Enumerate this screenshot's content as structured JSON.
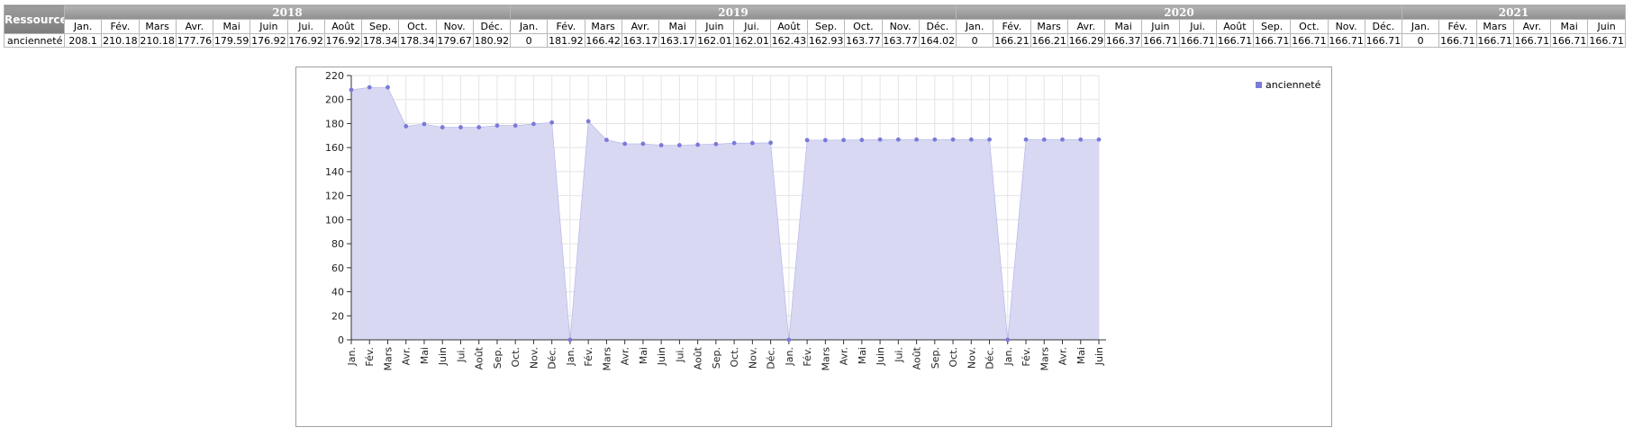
{
  "table": {
    "resource_header": "Ressource",
    "years": [
      {
        "label": "2018",
        "span": 12
      },
      {
        "label": "2019",
        "span": 12
      },
      {
        "label": "2020",
        "span": 12
      },
      {
        "label": "2021",
        "span": 6
      }
    ],
    "months": [
      "Jan.",
      "Fév.",
      "Mars",
      "Avr.",
      "Mai",
      "Juin",
      "Jui.",
      "Août",
      "Sep.",
      "Oct.",
      "Nov.",
      "Déc.",
      "Jan.",
      "Fév.",
      "Mars",
      "Avr.",
      "Mai",
      "Juin",
      "Jui.",
      "Août",
      "Sep.",
      "Oct.",
      "Nov.",
      "Déc.",
      "Jan.",
      "Fév.",
      "Mars",
      "Avr.",
      "Mai",
      "Juin",
      "Jui.",
      "Août",
      "Sep.",
      "Oct.",
      "Nov.",
      "Déc.",
      "Jan.",
      "Fév.",
      "Mars",
      "Avr.",
      "Mai",
      "Juin"
    ],
    "rows": [
      {
        "label": "ancienneté",
        "values": [
          "208.1",
          "210.18",
          "210.18",
          "177.76",
          "179.59",
          "176.92",
          "176.92",
          "176.92",
          "178.34",
          "178.34",
          "179.67",
          "180.92",
          "0",
          "181.92",
          "166.42",
          "163.17",
          "163.17",
          "162.01",
          "162.01",
          "162.43",
          "162.93",
          "163.77",
          "163.77",
          "164.02",
          "0",
          "166.21",
          "166.21",
          "166.29",
          "166.37",
          "166.71",
          "166.71",
          "166.71",
          "166.71",
          "166.71",
          "166.71",
          "166.71",
          "0",
          "166.71",
          "166.71",
          "166.71",
          "166.71",
          "166.71"
        ]
      }
    ]
  },
  "colors": {
    "series_line": "#7a7ad8",
    "series_fill": "#d6d6f2",
    "grid": "#e4e4e4",
    "axis": "#333333"
  },
  "chart_data": {
    "type": "area",
    "categories": [
      "Jan.",
      "Fév.",
      "Mars",
      "Avr.",
      "Mai",
      "Juin",
      "Jui.",
      "Août",
      "Sep.",
      "Oct.",
      "Nov.",
      "Déc.",
      "Jan.",
      "Fév.",
      "Mars",
      "Avr.",
      "Mai",
      "Juin",
      "Jui.",
      "Août",
      "Sep.",
      "Oct.",
      "Nov.",
      "Déc.",
      "Jan.",
      "Fév.",
      "Mars",
      "Avr.",
      "Mai",
      "Juin",
      "Jui.",
      "Août",
      "Sep.",
      "Oct.",
      "Nov.",
      "Déc.",
      "Jan.",
      "Fév.",
      "Mars",
      "Avr.",
      "Mai",
      "Juin"
    ],
    "series": [
      {
        "name": "ancienneté",
        "values": [
          208.1,
          210.18,
          210.18,
          177.76,
          179.59,
          176.92,
          176.92,
          176.92,
          178.34,
          178.34,
          179.67,
          180.92,
          0,
          181.92,
          166.42,
          163.17,
          163.17,
          162.01,
          162.01,
          162.43,
          162.93,
          163.77,
          163.77,
          164.02,
          0,
          166.21,
          166.21,
          166.29,
          166.37,
          166.71,
          166.71,
          166.71,
          166.71,
          166.71,
          166.71,
          166.71,
          0,
          166.71,
          166.71,
          166.71,
          166.71,
          166.71
        ]
      }
    ],
    "ylim": [
      0,
      220
    ],
    "yticks": [
      0,
      20,
      40,
      60,
      80,
      100,
      120,
      140,
      160,
      180,
      200,
      220
    ],
    "grid": true,
    "legend_position": "top-right",
    "title": "",
    "xlabel": "",
    "ylabel": ""
  }
}
